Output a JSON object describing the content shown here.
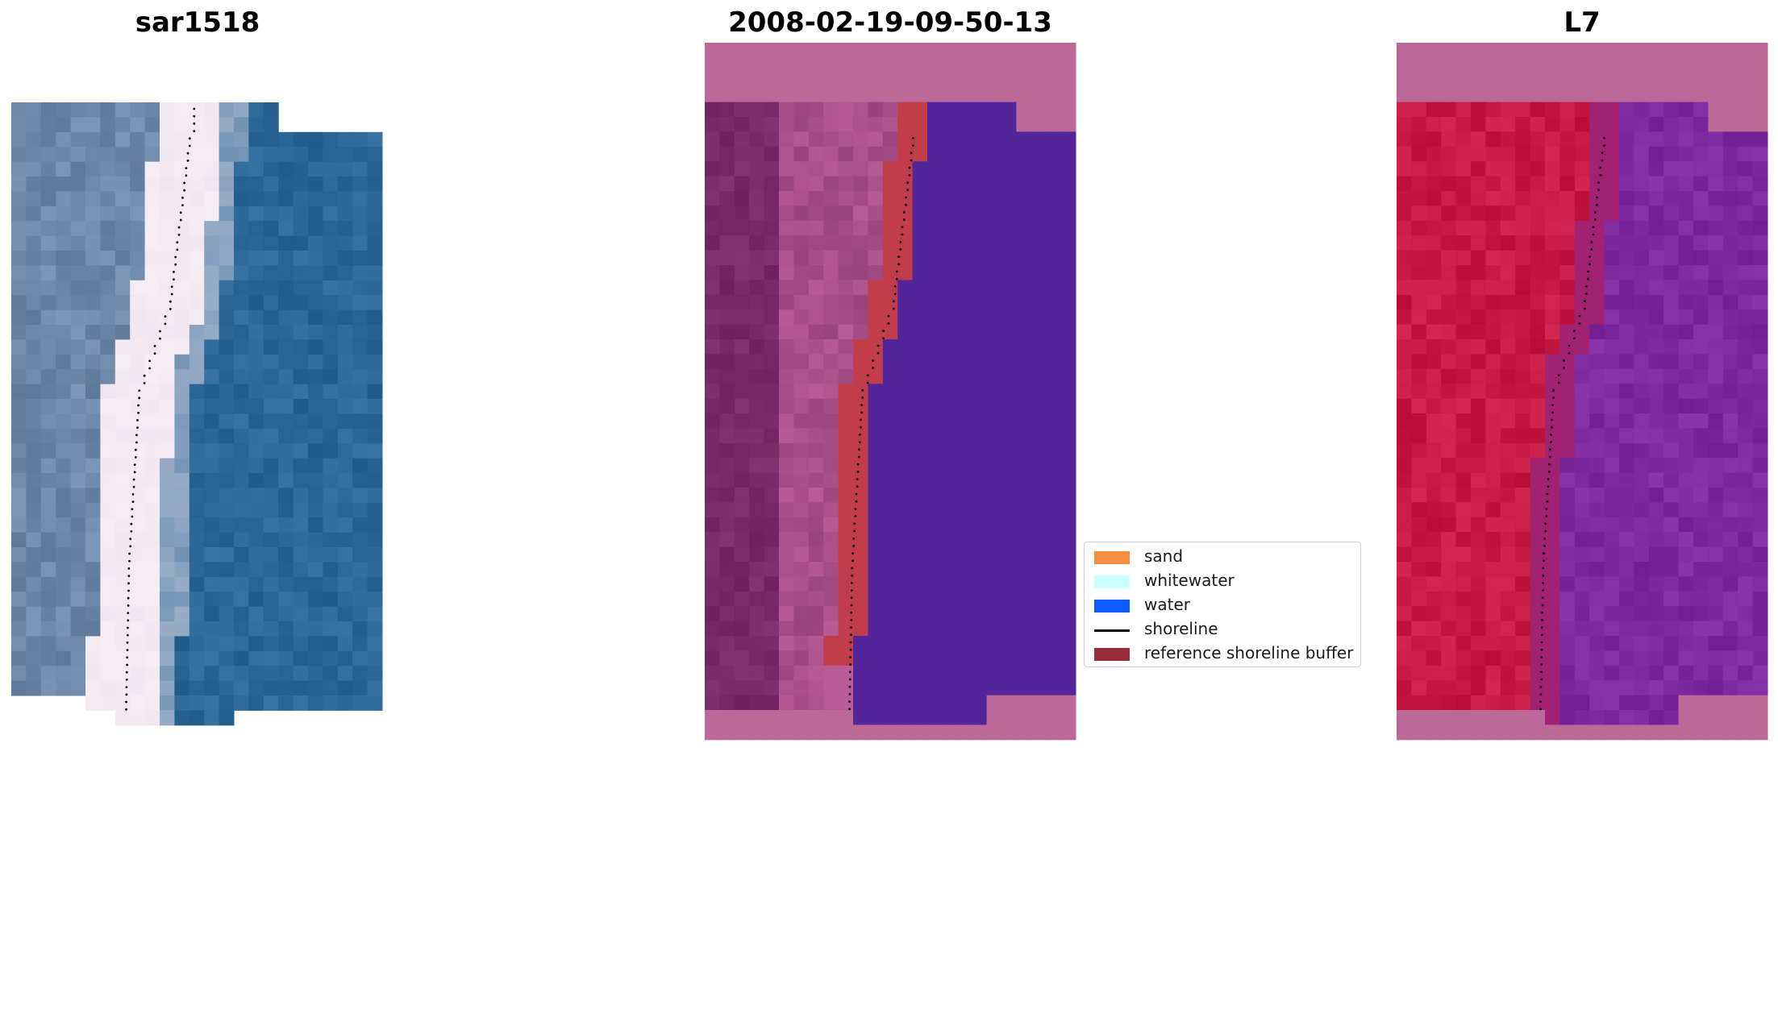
{
  "panels": [
    {
      "title": "sar1518",
      "kind": "rgb"
    },
    {
      "title": "2008-02-19-09-50-13",
      "kind": "classified"
    },
    {
      "title": "L7",
      "kind": "index"
    }
  ],
  "legend": {
    "items": [
      {
        "label": "sand",
        "type": "patch",
        "color": "#f78d3f"
      },
      {
        "label": "whitewater",
        "type": "patch",
        "color": "#ccffff"
      },
      {
        "label": "water",
        "type": "patch",
        "color": "#0a5cff"
      },
      {
        "label": "shoreline",
        "type": "line",
        "color": "#000000"
      },
      {
        "label": "reference shoreline buffer",
        "type": "patch",
        "color": "#9c2c3a"
      }
    ]
  },
  "colors": {
    "background_mask": "#bc6898",
    "land_dark": "#7a2a66",
    "land_light": "#b85c95",
    "water_class": "#54259a",
    "buffer": "#c23d4a",
    "index_land": "#c41a44",
    "index_water": "#7d2aa0",
    "rgb_sand": "#f1e6ef",
    "rgb_water": "#2c6795",
    "rgb_land": "#6d88a8"
  }
}
